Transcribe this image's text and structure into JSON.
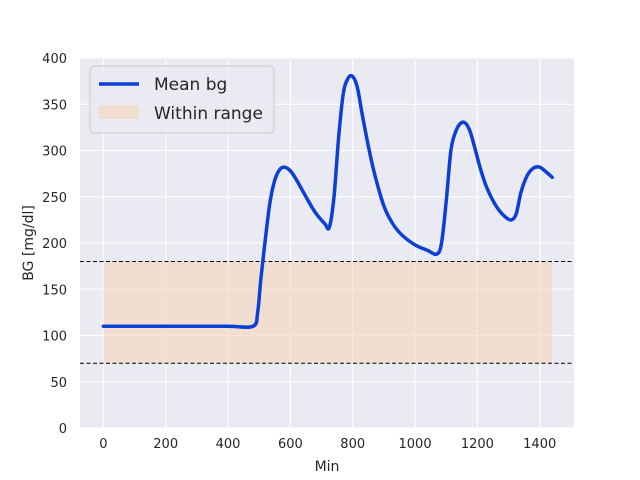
{
  "chart_data": {
    "type": "line",
    "xlabel": "Min",
    "ylabel": "BG [mg/dl]",
    "xlim": [
      -75,
      1510
    ],
    "ylim": [
      0,
      400
    ],
    "xticks": [
      0,
      200,
      400,
      600,
      800,
      1000,
      1200,
      1400
    ],
    "yticks": [
      0,
      50,
      100,
      150,
      200,
      250,
      300,
      350,
      400
    ],
    "grid": true,
    "legend_position": "top-left",
    "series": [
      {
        "name": "Mean bg",
        "color": "#0b3fd6",
        "x": [
          0,
          100,
          200,
          300,
          400,
          480,
          495,
          505,
          520,
          535,
          550,
          565,
          580,
          600,
          620,
          650,
          680,
          710,
          725,
          740,
          755,
          770,
          785,
          800,
          815,
          830,
          850,
          870,
          900,
          930,
          960,
          1000,
          1040,
          1070,
          1085,
          1100,
          1115,
          1130,
          1145,
          1160,
          1175,
          1190,
          1210,
          1230,
          1260,
          1290,
          1310,
          1325,
          1340,
          1360,
          1380,
          1400,
          1420,
          1440
        ],
        "y": [
          110,
          110,
          110,
          110,
          110,
          110,
          125,
          160,
          205,
          245,
          268,
          279,
          282,
          278,
          268,
          250,
          233,
          221,
          217,
          250,
          315,
          362,
          378,
          380,
          368,
          340,
          305,
          275,
          240,
          220,
          208,
          198,
          192,
          188,
          200,
          245,
          300,
          320,
          329,
          330,
          322,
          305,
          280,
          260,
          240,
          228,
          225,
          232,
          255,
          273,
          281,
          282,
          277,
          271
        ]
      }
    ],
    "range_band": {
      "name": "Within range",
      "low": 70,
      "high": 180,
      "x_start": 0,
      "x_end": 1440,
      "color": "#f5d5bb"
    },
    "reference_lines": [
      70,
      180
    ]
  }
}
